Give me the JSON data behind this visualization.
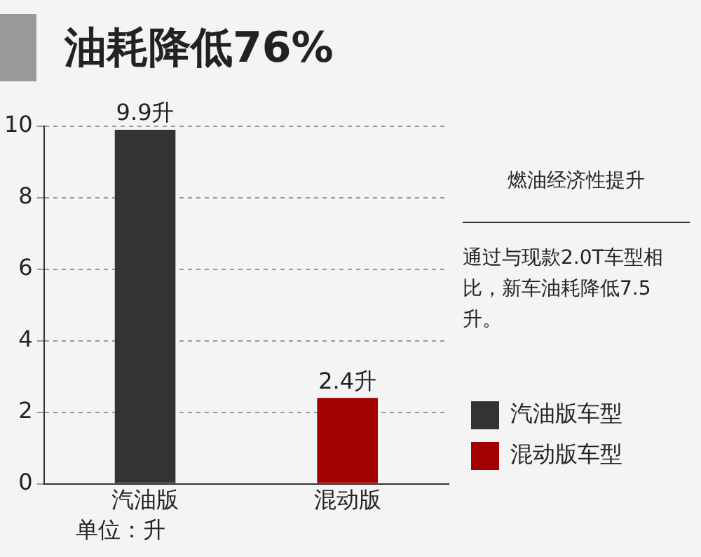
{
  "chart_data": {
    "type": "bar",
    "title": "油耗降低76%",
    "categories": [
      "汽油版",
      "混动版"
    ],
    "series": [
      {
        "name": "汽油版车型",
        "color": "#333333",
        "values": [
          9.9,
          null
        ],
        "value_labels": [
          "9.9升",
          null
        ]
      },
      {
        "name": "混动版车型",
        "color": "#a30000",
        "values": [
          null,
          2.4
        ],
        "value_labels": [
          null,
          "2.4升"
        ]
      }
    ],
    "ylim": [
      0,
      10
    ],
    "yticks": [
      0,
      2,
      4,
      6,
      8,
      10
    ],
    "grid": "y",
    "legend": "right",
    "annotations": [
      "燃油经济性提升",
      "通过与现款2.0T车型相比，新车油耗降低7.5升。",
      "单位：升"
    ]
  }
}
